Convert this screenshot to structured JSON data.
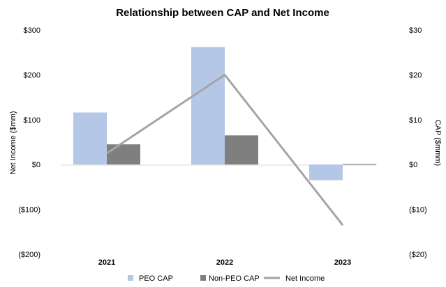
{
  "chart_data": {
    "type": "bar+line",
    "title": "Relationship between CAP and Net Income",
    "categories": [
      "2021",
      "2022",
      "2023"
    ],
    "left_axis": {
      "label": "Net Income ($mm)",
      "ticks": [
        "$300",
        "$200",
        "$100",
        "$0",
        "($100)",
        "($200)"
      ],
      "range": [
        -200,
        300
      ]
    },
    "right_axis": {
      "label": "CAP ($mmm)",
      "ticks": [
        "$30",
        "$20",
        "$10",
        "$0",
        "($10)",
        "($20)"
      ],
      "range": [
        -20,
        30
      ]
    },
    "series": [
      {
        "name": "PEO CAP",
        "type": "bar",
        "axis": "right",
        "color": "#b4c7e7",
        "values": [
          11.6,
          26.2,
          -3.5
        ]
      },
      {
        "name": "Non-PEO CAP",
        "type": "bar",
        "axis": "right",
        "color": "#7f7f7f",
        "values": [
          4.5,
          6.5,
          0.1
        ]
      },
      {
        "name": "Net Income",
        "type": "line",
        "axis": "left",
        "color": "#a5a5a5",
        "values": [
          25,
          200,
          -135
        ]
      }
    ],
    "grid": false,
    "legend_position": "bottom"
  }
}
